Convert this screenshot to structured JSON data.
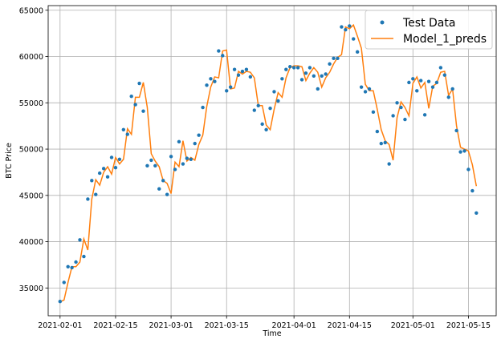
{
  "chart_data": {
    "type": "line",
    "xlabel": "Time",
    "ylabel": "BTC Price",
    "grid": true,
    "legend_placement": "top-right",
    "x_range": [
      "2021-01-29",
      "2021-05-22"
    ],
    "ylim": [
      32000,
      65500
    ],
    "x_ticks": [
      "2021-02-01",
      "2021-02-15",
      "2021-03-01",
      "2021-03-15",
      "2021-04-01",
      "2021-04-15",
      "2021-05-01",
      "2021-05-15"
    ],
    "y_ticks": [
      35000,
      40000,
      45000,
      50000,
      55000,
      60000,
      65000
    ],
    "start_date": "2021-02-01",
    "series": [
      {
        "name": "Test Data",
        "style": "scatter",
        "color": "#1f77b4",
        "values": [
          33540,
          35600,
          37300,
          37200,
          37800,
          40200,
          38400,
          44600,
          46600,
          45100,
          47400,
          47900,
          47000,
          49100,
          48000,
          48900,
          52100,
          51600,
          55700,
          54800,
          57100,
          54100,
          48200,
          48800,
          48200,
          45700,
          46600,
          45100,
          49200,
          47800,
          50800,
          48400,
          49000,
          48900,
          50600,
          51500,
          54500,
          56900,
          57600,
          57300,
          60600,
          60100,
          56300,
          56700,
          58600,
          58000,
          58400,
          58600,
          57800,
          54200,
          54700,
          52700,
          52100,
          54400,
          56200,
          55200,
          57600,
          58600,
          58900,
          58800,
          58800,
          57500,
          58200,
          58800,
          57900,
          56500,
          57900,
          58100,
          59200,
          59800,
          59800,
          63200,
          62900,
          63300,
          61900,
          60500,
          56700,
          56200,
          56500,
          54000,
          51900,
          50600,
          50700,
          48400,
          53600,
          55000,
          54500,
          53200,
          57200,
          57600,
          56300,
          57400,
          53700,
          57300,
          56700,
          57200,
          58800,
          58000,
          55600,
          56500,
          52000,
          49700,
          49800,
          47800,
          45500,
          43100
        ]
      },
      {
        "name": "Model_1_preds",
        "style": "line",
        "color": "#ff7f0e",
        "values": [
          33500,
          33700,
          35600,
          37300,
          37300,
          37800,
          40300,
          39100,
          44600,
          46700,
          46100,
          47500,
          48100,
          47300,
          49100,
          48400,
          48900,
          52200,
          51600,
          55600,
          55600,
          57200,
          54500,
          49500,
          48700,
          48100,
          46600,
          46300,
          45200,
          48600,
          48100,
          50900,
          48700,
          49100,
          48800,
          50500,
          51500,
          54600,
          56700,
          57800,
          57700,
          60600,
          60700,
          56500,
          56600,
          58400,
          58100,
          58400,
          58300,
          57700,
          54700,
          54700,
          52600,
          52100,
          54300,
          56100,
          55600,
          57700,
          58800,
          59000,
          59000,
          58900,
          57400,
          58200,
          58800,
          58300,
          56700,
          57700,
          58300,
          59200,
          59900,
          60200,
          63200,
          63000,
          63400,
          62200,
          60900,
          57000,
          56300,
          56300,
          54300,
          52100,
          50900,
          50500,
          48800,
          53400,
          55100,
          54500,
          53600,
          57100,
          57800,
          56600,
          57200,
          54400,
          56800,
          57100,
          58300,
          58400,
          55800,
          56500,
          52500,
          50200,
          50000,
          49800,
          48300,
          46000
        ]
      }
    ]
  }
}
